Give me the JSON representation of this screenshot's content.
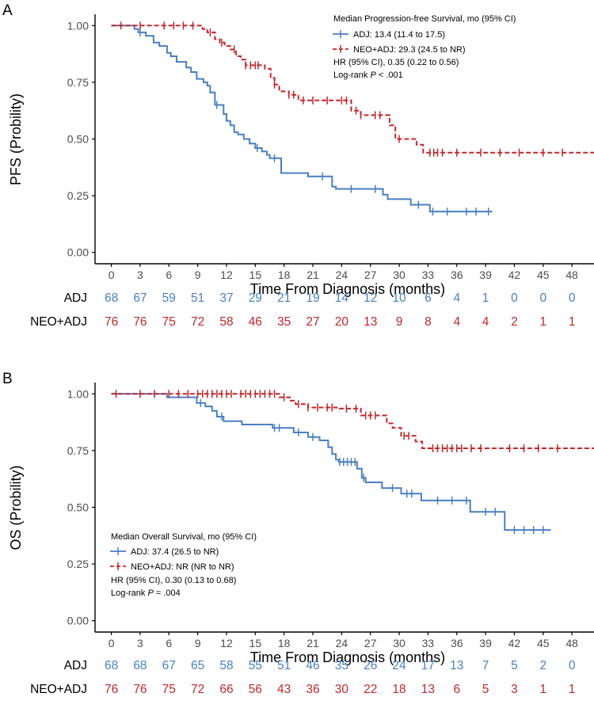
{
  "colors": {
    "adj": "#4a7fc1",
    "neo": "#c0282d",
    "axis": "#000000",
    "tick": "#4d4d4d"
  },
  "chart_data": [
    {
      "type": "line",
      "panel": "A",
      "ylabel": "PFS (Probility)",
      "xlabel": "Time From Diagnosis (months)",
      "xlim": [
        -1.7,
        50.3
      ],
      "ylim": [
        -0.05,
        1.05
      ],
      "x_ticks": [
        0,
        3,
        6,
        9,
        12,
        15,
        18,
        21,
        24,
        27,
        30,
        33,
        36,
        39,
        42,
        45,
        48
      ],
      "y_ticks": [
        0,
        0.25,
        0.5,
        0.75,
        1
      ],
      "y_tick_labels": [
        "0.00",
        "0.25",
        "0.50",
        "0.75",
        "1.00"
      ],
      "grid": false,
      "legend_position": "top-right",
      "legend": {
        "title": "Median Progression-free Survival, mo (95% CI)",
        "entries": [
          {
            "name": "ADJ",
            "text": ": 13.4 (11.4 to 17.5)"
          },
          {
            "name": "NEO+ADJ",
            "text": ": 29.3 (24.5 to NR)"
          }
        ],
        "hr_text": "HR (95% CI), 0.35 (0.22 to 0.56)",
        "logrank_prefix": "Log-rank ",
        "logrank_p": "P",
        "logrank_value": " < .001"
      },
      "series": [
        {
          "name": "ADJ",
          "key": "adj",
          "dash": false,
          "steps": [
            [
              0,
              1.0
            ],
            [
              2.4,
              0.985
            ],
            [
              2.8,
              0.97
            ],
            [
              3.6,
              0.955
            ],
            [
              4.4,
              0.925
            ],
            [
              5.0,
              0.91
            ],
            [
              5.8,
              0.88
            ],
            [
              6.2,
              0.865
            ],
            [
              6.8,
              0.84
            ],
            [
              7.8,
              0.815
            ],
            [
              8.3,
              0.795
            ],
            [
              8.9,
              0.765
            ],
            [
              9.6,
              0.75
            ],
            [
              10.0,
              0.735
            ],
            [
              10.3,
              0.705
            ],
            [
              10.8,
              0.65
            ],
            [
              11.7,
              0.61
            ],
            [
              12.0,
              0.58
            ],
            [
              12.4,
              0.56
            ],
            [
              12.8,
              0.53
            ],
            [
              13.2,
              0.52
            ],
            [
              13.8,
              0.5
            ],
            [
              14.4,
              0.48
            ],
            [
              15.0,
              0.46
            ],
            [
              15.7,
              0.445
            ],
            [
              16.2,
              0.43
            ],
            [
              16.5,
              0.415
            ],
            [
              17.7,
              0.35
            ],
            [
              20.5,
              0.335
            ],
            [
              23.0,
              0.29
            ],
            [
              23.4,
              0.28
            ],
            [
              28.3,
              0.255
            ],
            [
              28.8,
              0.235
            ],
            [
              31.2,
              0.21
            ],
            [
              33.2,
              0.18
            ],
            [
              39.7,
              0.18
            ]
          ],
          "censor_x": [
            3.0,
            11.0,
            15.2,
            17.0,
            22.0,
            25.0,
            27.5,
            32.0,
            33.5,
            35.0,
            37.0,
            38.0,
            39.3
          ]
        },
        {
          "name": "NEO+ADJ",
          "key": "neo",
          "dash": true,
          "steps": [
            [
              0,
              1.0
            ],
            [
              9.5,
              0.985
            ],
            [
              10.0,
              0.97
            ],
            [
              10.8,
              0.94
            ],
            [
              11.3,
              0.925
            ],
            [
              11.8,
              0.91
            ],
            [
              12.4,
              0.895
            ],
            [
              13.0,
              0.865
            ],
            [
              13.5,
              0.85
            ],
            [
              14.0,
              0.825
            ],
            [
              16.0,
              0.81
            ],
            [
              16.6,
              0.77
            ],
            [
              17.0,
              0.74
            ],
            [
              17.5,
              0.71
            ],
            [
              18.5,
              0.695
            ],
            [
              19.5,
              0.67
            ],
            [
              25.0,
              0.625
            ],
            [
              26.0,
              0.605
            ],
            [
              29.0,
              0.56
            ],
            [
              29.6,
              0.5
            ],
            [
              31.8,
              0.475
            ],
            [
              32.5,
              0.44
            ],
            [
              50.3,
              0.44
            ]
          ],
          "censor_x": [
            1.0,
            3.0,
            5.5,
            6.5,
            7.5,
            8.5,
            10.3,
            11.5,
            12.8,
            14.0,
            14.5,
            15.0,
            15.3,
            17.0,
            18.5,
            19.0,
            20.0,
            21.0,
            22.5,
            24.0,
            24.5,
            25.5,
            26.0,
            27.5,
            28.0,
            30.0,
            33.2,
            33.6,
            34.0,
            34.5,
            36.0,
            38.5,
            40.5,
            42.5,
            45.0,
            47.0
          ]
        }
      ],
      "risk_table": {
        "rows": [
          {
            "group": "ADJ",
            "key": "adj",
            "values": [
              "68",
              "67",
              "59",
              "51",
              "37",
              "29",
              "21",
              "19",
              "14",
              "12",
              "10",
              "6",
              "4",
              "1",
              "0",
              "0",
              "0"
            ]
          },
          {
            "group": "NEO+ADJ",
            "key": "neo",
            "values": [
              "76",
              "76",
              "75",
              "72",
              "58",
              "46",
              "35",
              "27",
              "20",
              "13",
              "9",
              "8",
              "4",
              "4",
              "2",
              "1",
              "1"
            ]
          }
        ]
      }
    },
    {
      "type": "line",
      "panel": "B",
      "ylabel": "OS (Probility)",
      "xlabel": "Time From Diagnosis (months)",
      "xlim": [
        -1.7,
        50.3
      ],
      "ylim": [
        -0.05,
        1.05
      ],
      "x_ticks": [
        0,
        3,
        6,
        9,
        12,
        15,
        18,
        21,
        24,
        27,
        30,
        33,
        36,
        39,
        42,
        45,
        48
      ],
      "y_ticks": [
        0,
        0.25,
        0.5,
        0.75,
        1
      ],
      "y_tick_labels": [
        "0.00",
        "0.25",
        "0.50",
        "0.75",
        "1.00"
      ],
      "grid": false,
      "legend_position": "bottom-left",
      "legend": {
        "title": "Median Overall Survival, mo (95% CI)",
        "entries": [
          {
            "name": "ADJ",
            "text": ": 37.4 (26.5 to NR)"
          },
          {
            "name": "NEO+ADJ",
            "text": ": NR (NR to NR)"
          }
        ],
        "hr_text": "HR (95% CI), 0.30 (0.13 to 0.68)",
        "logrank_prefix": "Log-rank ",
        "logrank_p": "P",
        "logrank_value": " = .004"
      },
      "series": [
        {
          "name": "ADJ",
          "key": "adj",
          "dash": false,
          "steps": [
            [
              0,
              1.0
            ],
            [
              5.8,
              0.985
            ],
            [
              8.9,
              0.96
            ],
            [
              9.8,
              0.945
            ],
            [
              10.5,
              0.925
            ],
            [
              11.0,
              0.9
            ],
            [
              11.7,
              0.88
            ],
            [
              13.6,
              0.865
            ],
            [
              16.8,
              0.85
            ],
            [
              19.0,
              0.83
            ],
            [
              20.5,
              0.81
            ],
            [
              21.7,
              0.795
            ],
            [
              22.6,
              0.765
            ],
            [
              23.0,
              0.735
            ],
            [
              23.4,
              0.71
            ],
            [
              23.7,
              0.7
            ],
            [
              25.6,
              0.67
            ],
            [
              26.1,
              0.63
            ],
            [
              26.5,
              0.61
            ],
            [
              28.2,
              0.585
            ],
            [
              30.2,
              0.56
            ],
            [
              32.3,
              0.53
            ],
            [
              37.4,
              0.48
            ],
            [
              41.0,
              0.4
            ],
            [
              45.8,
              0.4
            ]
          ],
          "censor_x": [
            9.3,
            11.5,
            17.0,
            17.5,
            19.5,
            21.0,
            23.8,
            24.2,
            24.6,
            25.0,
            25.4,
            26.3,
            29.3,
            30.8,
            31.3,
            34.0,
            35.5,
            37.0,
            39.0,
            40.0,
            42.0,
            43.0,
            44.0,
            45.0
          ]
        },
        {
          "name": "NEO+ADJ",
          "key": "neo",
          "dash": true,
          "steps": [
            [
              0,
              1.0
            ],
            [
              17.5,
              0.985
            ],
            [
              18.6,
              0.97
            ],
            [
              19.2,
              0.955
            ],
            [
              20.5,
              0.94
            ],
            [
              23.5,
              0.935
            ],
            [
              26.0,
              0.905
            ],
            [
              28.7,
              0.87
            ],
            [
              29.3,
              0.85
            ],
            [
              30.2,
              0.815
            ],
            [
              31.7,
              0.79
            ],
            [
              32.4,
              0.76
            ],
            [
              50.3,
              0.76
            ]
          ],
          "censor_x": [
            0.5,
            3.0,
            4.5,
            6.0,
            7.0,
            8.0,
            9.0,
            9.5,
            10.0,
            10.5,
            11.0,
            11.5,
            12.0,
            12.5,
            13.5,
            14.0,
            14.5,
            15.0,
            15.5,
            16.0,
            16.5,
            17.0,
            18.0,
            19.5,
            20.5,
            21.5,
            22.5,
            23.0,
            24.5,
            25.5,
            26.5,
            27.0,
            27.5,
            30.5,
            31.0,
            33.5,
            34.0,
            34.5,
            35.0,
            35.5,
            36.0,
            36.5,
            37.5,
            38.5,
            41.5,
            43.0,
            44.5,
            46.5
          ]
        }
      ],
      "risk_table": {
        "rows": [
          {
            "group": "ADJ",
            "key": "adj",
            "values": [
              "68",
              "68",
              "67",
              "65",
              "58",
              "55",
              "51",
              "46",
              "35",
              "26",
              "24",
              "17",
              "13",
              "7",
              "5",
              "2",
              "0"
            ]
          },
          {
            "group": "NEO+ADJ",
            "key": "neo",
            "values": [
              "76",
              "76",
              "75",
              "72",
              "66",
              "56",
              "43",
              "36",
              "30",
              "22",
              "18",
              "13",
              "6",
              "5",
              "3",
              "1",
              "1"
            ]
          }
        ]
      }
    }
  ]
}
